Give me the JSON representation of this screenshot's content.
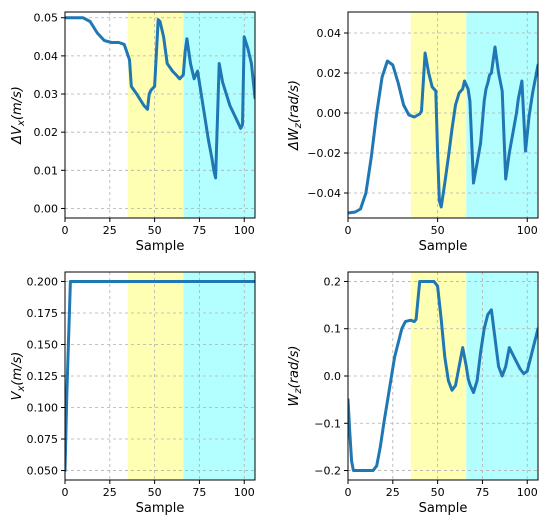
{
  "colors": {
    "line": "#1f77b4",
    "band_yellow": "#ffffb3",
    "band_cyan": "#b3ffff"
  },
  "chart_data": [
    {
      "type": "line",
      "xlabel": "Sample",
      "ylabel": "ΔV_x(m/s)",
      "ylabel_main": "ΔV",
      "ylabel_sub": "x",
      "ylabel_unit": "(m/s)",
      "xlim": [
        0,
        106
      ],
      "ylim": [
        -0.0025,
        0.0515
      ],
      "xticks": [
        0,
        25,
        50,
        75,
        100
      ],
      "yticks": [
        0.0,
        0.01,
        0.02,
        0.03,
        0.04,
        0.05
      ],
      "ytick_labels": [
        "0.00",
        "0.01",
        "0.02",
        "0.03",
        "0.04",
        "0.05"
      ],
      "grid": true,
      "bands": [
        {
          "from": 35,
          "to": 66,
          "color": "yellow"
        },
        {
          "from": 66,
          "to": 106,
          "color": "cyan"
        }
      ],
      "x": [
        0,
        10,
        14,
        18,
        22,
        26,
        30,
        33,
        36,
        37,
        40,
        44,
        46,
        47,
        48,
        50,
        52,
        53,
        55,
        57,
        60,
        62,
        64,
        66,
        67,
        68,
        70,
        72,
        74,
        76,
        78,
        80,
        82,
        83,
        84,
        86,
        88,
        90,
        92,
        94,
        96,
        98,
        99,
        100,
        102,
        104,
        106
      ],
      "y": [
        0.05,
        0.05,
        0.049,
        0.046,
        0.044,
        0.0435,
        0.0435,
        0.043,
        0.039,
        0.032,
        0.03,
        0.027,
        0.026,
        0.03,
        0.031,
        0.032,
        0.0495,
        0.049,
        0.045,
        0.038,
        0.036,
        0.035,
        0.034,
        0.035,
        0.041,
        0.0445,
        0.038,
        0.034,
        0.036,
        0.03,
        0.024,
        0.018,
        0.013,
        0.01,
        0.008,
        0.038,
        0.033,
        0.03,
        0.027,
        0.025,
        0.023,
        0.021,
        0.022,
        0.045,
        0.042,
        0.038,
        0.029
      ]
    },
    {
      "type": "line",
      "xlabel": "Sample",
      "ylabel": "ΔW_z(rad/s)",
      "ylabel_main": "ΔW",
      "ylabel_sub": "z",
      "ylabel_unit": "(rad/s)",
      "xlim": [
        0,
        106
      ],
      "ylim": [
        -0.0525,
        0.0505
      ],
      "xticks": [
        0,
        50,
        100
      ],
      "yticks": [
        -0.04,
        -0.02,
        0.0,
        0.02,
        0.04
      ],
      "ytick_labels": [
        "−0.04",
        "−0.02",
        "0.00",
        "0.02",
        "0.04"
      ],
      "grid": true,
      "bands": [
        {
          "from": 35,
          "to": 66,
          "color": "yellow"
        },
        {
          "from": 66,
          "to": 106,
          "color": "cyan"
        }
      ],
      "x": [
        0,
        4,
        7,
        10,
        13,
        16,
        19,
        22,
        25,
        28,
        31,
        34,
        37,
        40,
        41,
        43,
        45,
        47,
        49,
        50,
        51,
        52,
        54,
        56,
        58,
        60,
        62,
        64,
        65,
        67,
        68,
        70,
        72,
        74,
        76,
        77,
        78,
        79,
        80,
        82,
        84,
        86,
        88,
        90,
        92,
        94,
        95,
        97,
        99,
        101,
        103,
        106
      ],
      "y": [
        -0.05,
        -0.0495,
        -0.048,
        -0.04,
        -0.022,
        0.0,
        0.018,
        0.026,
        0.024,
        0.015,
        0.004,
        -0.001,
        -0.002,
        -0.0005,
        0.001,
        0.03,
        0.02,
        0.013,
        0.011,
        -0.02,
        -0.044,
        -0.047,
        -0.035,
        -0.022,
        -0.008,
        0.004,
        0.01,
        0.012,
        0.016,
        0.012,
        0.006,
        -0.035,
        -0.025,
        -0.015,
        0.006,
        0.012,
        0.015,
        0.019,
        0.02,
        0.033,
        0.02,
        0.011,
        -0.033,
        -0.02,
        -0.01,
        0.0,
        0.007,
        0.016,
        -0.019,
        -0.002,
        0.01,
        0.024
      ]
    },
    {
      "type": "line",
      "xlabel": "Sample",
      "ylabel": "V_x(m/s)",
      "ylabel_main": "V",
      "ylabel_sub": "x",
      "ylabel_unit": "(m/s)",
      "xlim": [
        0,
        106
      ],
      "ylim": [
        0.0425,
        0.2075
      ],
      "xticks": [
        0,
        25,
        50,
        75,
        100
      ],
      "yticks": [
        0.05,
        0.075,
        0.1,
        0.125,
        0.15,
        0.175,
        0.2
      ],
      "ytick_labels": [
        "0.050",
        "0.075",
        "0.100",
        "0.125",
        "0.150",
        "0.175",
        "0.200"
      ],
      "grid": true,
      "bands": [
        {
          "from": 35,
          "to": 66,
          "color": "yellow"
        },
        {
          "from": 66,
          "to": 106,
          "color": "cyan"
        }
      ],
      "x": [
        0,
        1,
        3,
        10,
        50,
        106
      ],
      "y": [
        0.05,
        0.11,
        0.2,
        0.2,
        0.2,
        0.2
      ]
    },
    {
      "type": "line",
      "xlabel": "Sample",
      "ylabel": "W_z(rad/s)",
      "ylabel_main": "W",
      "ylabel_sub": "z",
      "ylabel_unit": "(rad/s)",
      "xlim": [
        0,
        106
      ],
      "ylim": [
        -0.22,
        0.22
      ],
      "xticks": [
        0,
        25,
        50,
        75,
        100
      ],
      "yticks": [
        -0.2,
        -0.1,
        0.0,
        0.1,
        0.2
      ],
      "ytick_labels": [
        "−0.2",
        "−0.1",
        "0.0",
        "0.1",
        "0.2"
      ],
      "grid": true,
      "bands": [
        {
          "from": 35,
          "to": 66,
          "color": "yellow"
        },
        {
          "from": 66,
          "to": 106,
          "color": "cyan"
        }
      ],
      "x": [
        0,
        1,
        2,
        3,
        10,
        12,
        14,
        16,
        18,
        20,
        23,
        26,
        30,
        32,
        35,
        37,
        38,
        40,
        42,
        44,
        46,
        48,
        50,
        52,
        54,
        56,
        58,
        60,
        62,
        64,
        66,
        67,
        68,
        70,
        72,
        74,
        76,
        78,
        80,
        82,
        84,
        86,
        88,
        90,
        92,
        94,
        96,
        98,
        100,
        102,
        104,
        106
      ],
      "y": [
        -0.05,
        -0.12,
        -0.18,
        -0.2,
        -0.2,
        -0.2,
        -0.2,
        -0.19,
        -0.15,
        -0.1,
        -0.03,
        0.04,
        0.1,
        0.115,
        0.118,
        0.115,
        0.12,
        0.2,
        0.2,
        0.2,
        0.2,
        0.2,
        0.19,
        0.12,
        0.04,
        -0.01,
        -0.03,
        -0.02,
        0.02,
        0.06,
        0.02,
        -0.005,
        -0.018,
        -0.035,
        -0.01,
        0.05,
        0.1,
        0.13,
        0.14,
        0.08,
        0.02,
        0.0,
        0.02,
        0.06,
        0.045,
        0.03,
        0.015,
        0.005,
        0.01,
        0.04,
        0.07,
        0.1
      ]
    }
  ]
}
